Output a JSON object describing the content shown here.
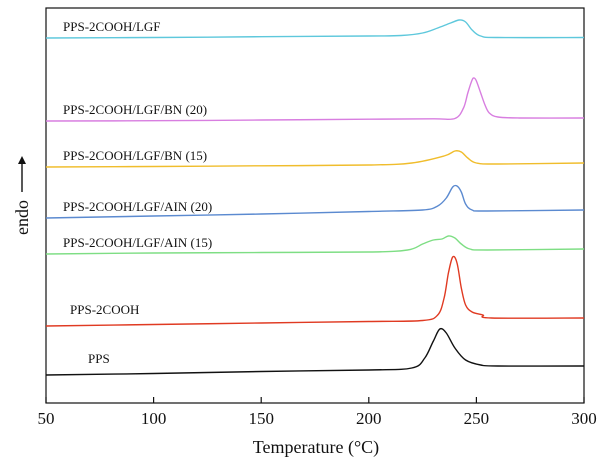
{
  "chart_data": {
    "type": "line",
    "xlabel": "Temperature (°C)",
    "ylabel": "endo",
    "xlim": [
      50,
      300
    ],
    "x_ticks": [
      50,
      100,
      150,
      200,
      250,
      300
    ],
    "y_ticks_shown": false,
    "grid": false,
    "legend": "inline labels above each curve",
    "y_units": "relative heat flow (arbitrary, stacked curves)",
    "series": [
      {
        "name": "PPS-2COOH/LGF",
        "color": "#5ec8dc",
        "points": [
          [
            50,
            30
          ],
          [
            100,
            29.5
          ],
          [
            150,
            28.7
          ],
          [
            200,
            28
          ],
          [
            215,
            27.5
          ],
          [
            225,
            25
          ],
          [
            232,
            20
          ],
          [
            238,
            15
          ],
          [
            242,
            12
          ],
          [
            245,
            14
          ],
          [
            248,
            22
          ],
          [
            252,
            28
          ],
          [
            260,
            29.5
          ],
          [
            300,
            29.5
          ]
        ]
      },
      {
        "name": "PPS-2COOH/LGF/BN (20)",
        "color": "#d87ee0",
        "points": [
          [
            50,
            113
          ],
          [
            100,
            112.7
          ],
          [
            150,
            112
          ],
          [
            200,
            111.2
          ],
          [
            230,
            110.8
          ],
          [
            240,
            110.5
          ],
          [
            244,
            100
          ],
          [
            246,
            85
          ],
          [
            248,
            72
          ],
          [
            249,
            70
          ],
          [
            250,
            73
          ],
          [
            252,
            85
          ],
          [
            254,
            97
          ],
          [
            256,
            105
          ],
          [
            260,
            109
          ],
          [
            270,
            110
          ],
          [
            300,
            110
          ]
        ]
      },
      {
        "name": "PPS-2COOH/LGF/BN (15)",
        "color": "#f0bd2c",
        "points": [
          [
            50,
            159
          ],
          [
            100,
            158.5
          ],
          [
            150,
            157.8
          ],
          [
            200,
            157
          ],
          [
            220,
            155
          ],
          [
            235,
            148
          ],
          [
            240,
            143
          ],
          [
            243,
            144
          ],
          [
            246,
            150
          ],
          [
            250,
            155
          ],
          [
            260,
            156
          ],
          [
            300,
            155
          ]
        ]
      },
      {
        "name": "PPS-2COOH/LGF/AIN (20)",
        "color": "#5b8ad0",
        "points": [
          [
            50,
            210
          ],
          [
            100,
            208
          ],
          [
            150,
            206
          ],
          [
            200,
            203.5
          ],
          [
            225,
            202
          ],
          [
            232,
            198
          ],
          [
            236,
            190
          ],
          [
            239,
            179
          ],
          [
            241,
            178
          ],
          [
            243,
            184
          ],
          [
            245,
            196
          ],
          [
            248,
            202
          ],
          [
            255,
            203
          ],
          [
            300,
            202
          ]
        ]
      },
      {
        "name": "PPS-2COOH/LGF/AIN (15)",
        "color": "#7ede84",
        "points": [
          [
            50,
            246
          ],
          [
            100,
            245
          ],
          [
            150,
            244.5
          ],
          [
            200,
            244
          ],
          [
            218,
            242
          ],
          [
            225,
            236
          ],
          [
            230,
            232
          ],
          [
            234,
            231
          ],
          [
            237,
            228
          ],
          [
            240,
            230
          ],
          [
            243,
            236
          ],
          [
            247,
            241
          ],
          [
            255,
            242
          ],
          [
            300,
            241
          ]
        ]
      },
      {
        "name": "PPS-2COOH",
        "color": "#e03a22",
        "points": [
          [
            50,
            318
          ],
          [
            100,
            316.5
          ],
          [
            150,
            315
          ],
          [
            200,
            313.5
          ],
          [
            225,
            312.5
          ],
          [
            232,
            307
          ],
          [
            235,
            290
          ],
          [
            237,
            265
          ],
          [
            239,
            249
          ],
          [
            241,
            255
          ],
          [
            243,
            280
          ],
          [
            245,
            297
          ],
          [
            248,
            304
          ],
          [
            253,
            307
          ],
          [
            257,
            310
          ],
          [
            300,
            310
          ]
        ]
      },
      {
        "name": "PPS",
        "color": "#111111",
        "points": [
          [
            50,
            367
          ],
          [
            100,
            365.5
          ],
          [
            150,
            363.5
          ],
          [
            200,
            362
          ],
          [
            220,
            360
          ],
          [
            226,
            350
          ],
          [
            230,
            333
          ],
          [
            233,
            321
          ],
          [
            236,
            325
          ],
          [
            240,
            340
          ],
          [
            245,
            352
          ],
          [
            252,
            357
          ],
          [
            260,
            358
          ],
          [
            300,
            358
          ]
        ]
      }
    ]
  }
}
